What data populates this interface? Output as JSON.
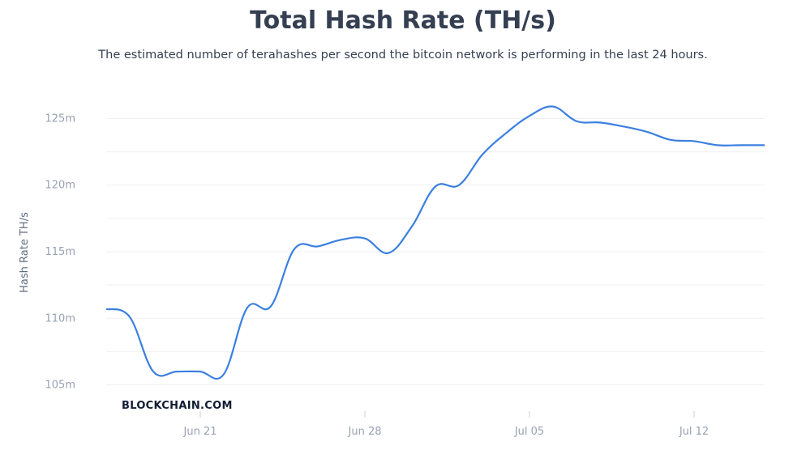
{
  "header": {
    "title": "Total Hash Rate (TH/s)",
    "subtitle": "The estimated number of terahashes per second the bitcoin network is performing in the last 24 hours."
  },
  "watermark": "BLOCKCHAIN.COM",
  "colors": {
    "line": "#3b7fe0",
    "grid": "#eef0f4",
    "title": "#353f52",
    "tick": "#98a1b2"
  },
  "chart_data": {
    "type": "line",
    "title": "Total Hash Rate (TH/s)",
    "ylabel": "Hash Rate TH/s",
    "xlabel": "",
    "ylim": [
      104,
      126
    ],
    "yticks": [
      105,
      110,
      115,
      120,
      125
    ],
    "ytick_labels": [
      "105m",
      "110m",
      "115m",
      "120m",
      "125m"
    ],
    "xlim": [
      0,
      28
    ],
    "xticks": [
      4,
      11,
      18,
      25
    ],
    "xtick_labels": [
      "Jun 21",
      "Jun 28",
      "Jul 05",
      "Jul 12"
    ],
    "grid": true,
    "series": [
      {
        "x": [
          0,
          1,
          2,
          3,
          4,
          5,
          6,
          7,
          8,
          9,
          10,
          11,
          12,
          13,
          14,
          15,
          16,
          17,
          18,
          19,
          20,
          21,
          22,
          23,
          24,
          25,
          26,
          27,
          28
        ],
        "values": [
          110.7,
          110.1,
          106.0,
          106.0,
          106.0,
          105.8,
          110.8,
          110.9,
          115.2,
          115.4,
          115.9,
          116.0,
          114.9,
          116.9,
          119.9,
          120.0,
          122.3,
          123.9,
          125.2,
          125.9,
          124.8,
          124.7,
          124.4,
          124.0,
          123.4,
          123.3,
          123.0,
          123.0,
          123.0
        ]
      }
    ]
  }
}
